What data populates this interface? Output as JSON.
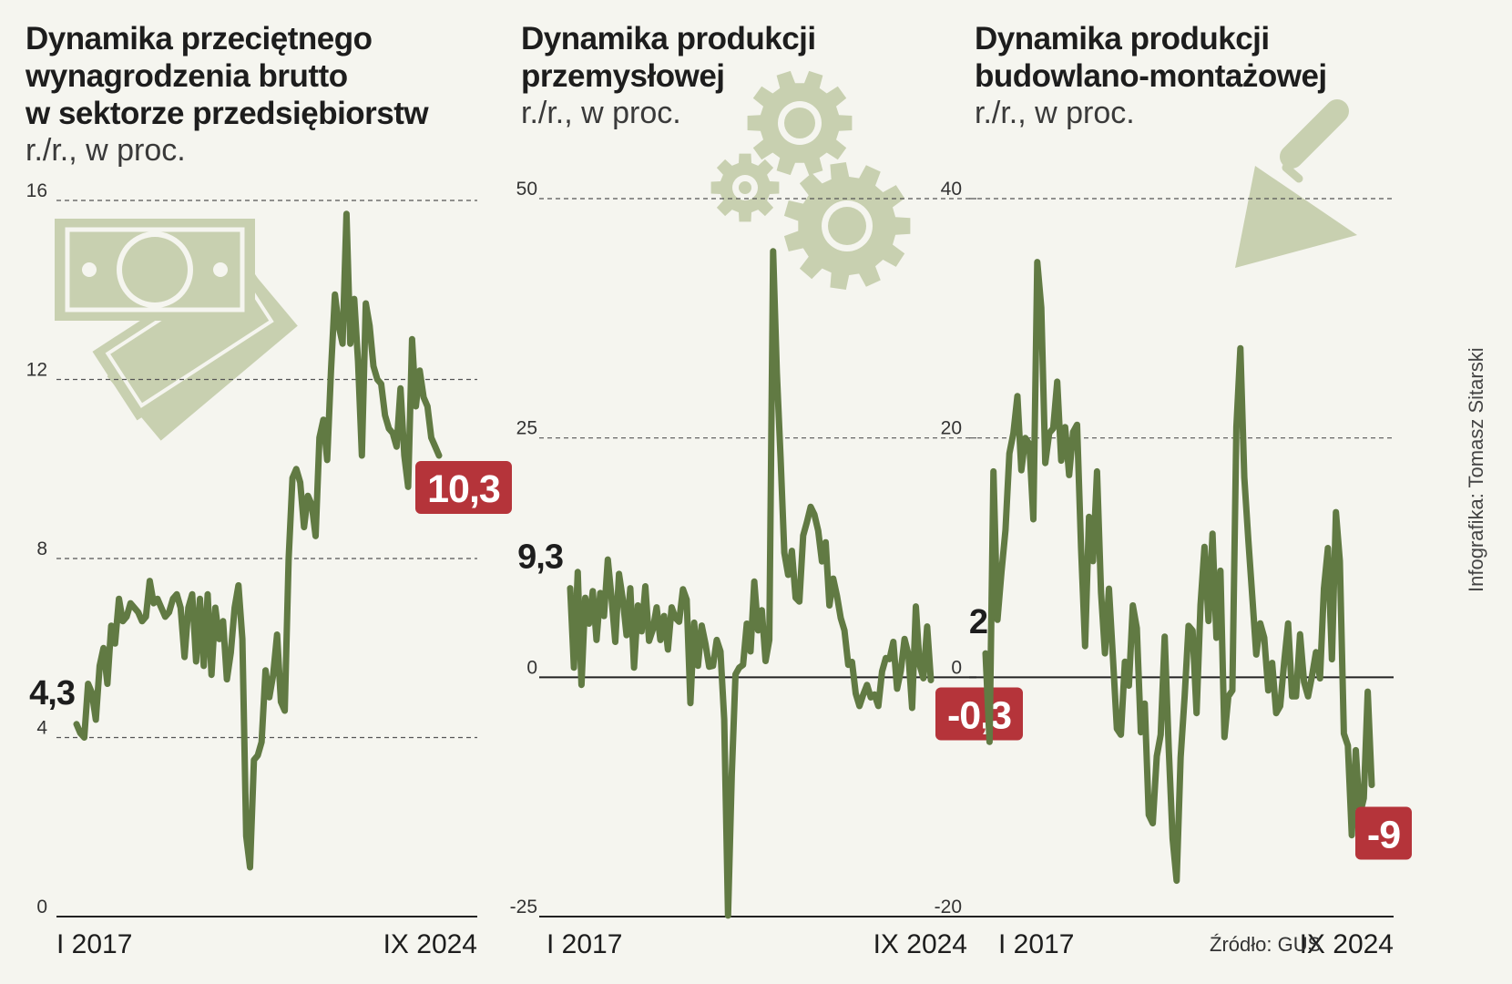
{
  "chart_data": [
    {
      "type": "line",
      "title": "Dynamika przeciętnego wynagrodzenia brutto w sektorze przedsiębiorstw",
      "title_lines": [
        "Dynamika przeciętnego",
        "wynagrodzenia brutto",
        "w sektorze przedsiębiorstw"
      ],
      "subtitle": "r./r., w proc.",
      "x_start_label": "I 2017",
      "x_end_label": "IX 2024",
      "ylim": [
        0,
        16
      ],
      "yticks": [
        0,
        4,
        8,
        12,
        16
      ],
      "ytick_labels": [
        "0",
        "4",
        "8",
        "12",
        "16"
      ],
      "zero_line": false,
      "start_label": "4,3",
      "end_label": "10,3",
      "line_color": "#617a43",
      "badge_color": "#b5343a",
      "values": [
        4.3,
        4.1,
        4.0,
        5.2,
        5.0,
        4.4,
        5.6,
        6.0,
        5.2,
        6.5,
        6.1,
        7.1,
        6.6,
        6.7,
        7.0,
        6.9,
        6.8,
        6.6,
        6.7,
        7.5,
        7.0,
        7.1,
        6.9,
        6.7,
        6.8,
        7.1,
        7.2,
        6.9,
        5.8,
        6.9,
        7.2,
        5.7,
        7.1,
        5.6,
        7.2,
        5.4,
        6.9,
        6.2,
        6.6,
        5.3,
        5.9,
        6.9,
        7.4,
        6.2,
        1.8,
        1.1,
        3.5,
        3.6,
        3.9,
        5.5,
        4.9,
        5.4,
        6.3,
        4.8,
        4.6,
        8.0,
        9.8,
        10.0,
        9.7,
        8.7,
        9.4,
        9.2,
        8.5,
        10.7,
        11.1,
        10.2,
        12.2,
        13.9,
        13.2,
        12.8,
        15.7,
        12.8,
        13.8,
        12.4,
        10.3,
        13.7,
        13.2,
        12.3,
        12.0,
        11.9,
        11.2,
        10.9,
        10.8,
        10.5,
        11.8,
        10.3,
        9.6,
        12.9,
        11.4,
        12.2,
        11.6,
        11.4,
        10.7,
        10.5,
        10.3
      ]
    },
    {
      "type": "line",
      "title": "Dynamika produkcji przemysłowej",
      "title_lines": [
        "Dynamika produkcji",
        "przemysłowej"
      ],
      "subtitle": "r./r., w proc.",
      "x_start_label": "I 2017",
      "x_end_label": "IX 2024",
      "ylim": [
        -25,
        50
      ],
      "yticks": [
        -25,
        0,
        25,
        50
      ],
      "ytick_labels": [
        "-25",
        "0",
        "25",
        "50"
      ],
      "zero_line": true,
      "start_label": "9,3",
      "end_label": "-0,3",
      "line_color": "#617a43",
      "badge_color": "#b5343a",
      "values": [
        9.3,
        1.0,
        11.0,
        -0.8,
        8.3,
        5.6,
        9.0,
        3.9,
        8.8,
        6.4,
        12.3,
        8.3,
        3.7,
        10.8,
        8.1,
        4.4,
        9.3,
        1.0,
        7.5,
        4.8,
        9.5,
        3.8,
        5.0,
        7.3,
        3.9,
        6.4,
        2.9,
        7.3,
        6.2,
        5.8,
        9.2,
        8.1,
        -2.7,
        5.7,
        1.2,
        5.4,
        3.5,
        1.1,
        1.2,
        3.9,
        2.7,
        -4.4,
        -24.9,
        -10.2,
        0.3,
        1.0,
        1.3,
        5.6,
        2.7,
        10.0,
        4.9,
        7.0,
        1.7,
        3.9,
        44.5,
        31.8,
        22.9,
        13.0,
        10.7,
        13.2,
        8.3,
        7.9,
        14.8,
        16.2,
        17.8,
        17.0,
        15.3,
        12.1,
        14.1,
        7.5,
        10.3,
        8.5,
        6.2,
        4.9,
        1.3,
        1.6,
        -1.7,
        -3.0,
        -1.8,
        -0.8,
        -2.1,
        -1.8,
        -3.0,
        0.6,
        2.0,
        1.9,
        3.7,
        -1.2,
        0.7,
        4.0,
        2.4,
        -3.2,
        7.4,
        1.3,
        -0.1,
        5.3,
        -0.3
      ]
    },
    {
      "type": "line",
      "title": "Dynamika produkcji budowlano-montażowej",
      "title_lines": [
        "Dynamika produkcji",
        "budowlano-montażowej"
      ],
      "subtitle": "r./r., w proc.",
      "x_start_label": "I 2017",
      "x_end_label": "IX 2024",
      "ylim": [
        -20,
        40
      ],
      "yticks": [
        -20,
        0,
        20,
        40
      ],
      "ytick_labels": [
        "-20",
        "0",
        "20",
        "40"
      ],
      "zero_line": true,
      "start_label": "2",
      "end_label": "-9",
      "line_color": "#617a43",
      "badge_color": "#b5343a",
      "values": [
        2.0,
        -5.4,
        17.2,
        4.8,
        8.8,
        12.3,
        18.7,
        20.4,
        23.5,
        17.3,
        20.0,
        19.5,
        13.2,
        34.7,
        30.9,
        17.9,
        20.4,
        20.8,
        24.7,
        18.1,
        20.9,
        16.9,
        20.5,
        21.1,
        10.8,
        2.6,
        13.4,
        9.7,
        17.2,
        7.1,
        2.0,
        7.4,
        1.6,
        -4.3,
        -4.8,
        1.3,
        -0.7,
        6.0,
        4.1,
        -4.6,
        -2.2,
        -11.5,
        -12.2,
        -6.6,
        -4.8,
        3.4,
        -5.9,
        -13.5,
        -17.0,
        -6.7,
        -1.6,
        4.3,
        3.9,
        -3.0,
        6.0,
        10.9,
        4.7,
        12.0,
        3.3,
        8.9,
        -5.0,
        -1.6,
        -1.1,
        20.9,
        27.5,
        16.7,
        11.5,
        6.7,
        1.9,
        4.5,
        3.3,
        -1.1,
        1.2,
        -3.0,
        -2.4,
        1.2,
        4.5,
        -1.6,
        -1.6,
        3.6,
        -0.4,
        -1.6,
        0.1,
        2.1,
        -0.1,
        7.4,
        10.8,
        1.5,
        13.8,
        9.7,
        -4.7,
        -5.7,
        -13.2,
        -6.1,
        -11.5,
        -10.1,
        -1.2,
        -9.0
      ]
    }
  ],
  "credit": "Infografika: Tomasz Sitarski",
  "source": "Źródło: GUS",
  "style": {
    "background": "#f5f5ef",
    "icon_color": "#c8d0b0",
    "icon_dark": "#b6bf9a"
  }
}
